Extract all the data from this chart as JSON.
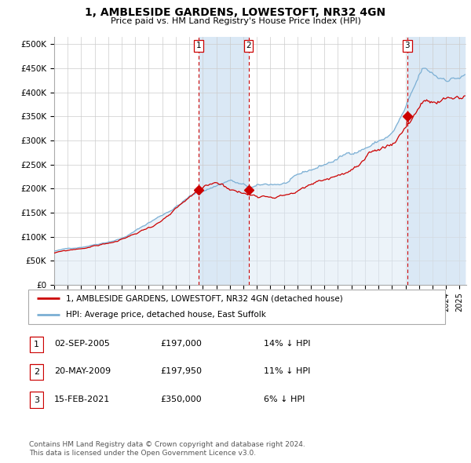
{
  "title": "1, AMBLESIDE GARDENS, LOWESTOFT, NR32 4GN",
  "subtitle": "Price paid vs. HM Land Registry's House Price Index (HPI)",
  "legend_property": "1, AMBLESIDE GARDENS, LOWESTOFT, NR32 4GN (detached house)",
  "legend_hpi": "HPI: Average price, detached house, East Suffolk",
  "property_color": "#cc0000",
  "hpi_color": "#7bafd4",
  "shade_color": "#dae8f5",
  "grid_color": "#cccccc",
  "yticks": [
    0,
    50000,
    100000,
    150000,
    200000,
    250000,
    300000,
    350000,
    400000,
    450000,
    500000
  ],
  "ytick_labels": [
    "£0",
    "£50K",
    "£100K",
    "£150K",
    "£200K",
    "£250K",
    "£300K",
    "£350K",
    "£400K",
    "£450K",
    "£500K"
  ],
  "xmin": 1995.0,
  "xmax": 2025.5,
  "ymin": 0,
  "ymax": 515000,
  "sales": [
    {
      "num": 1,
      "date_str": "02-SEP-2005",
      "date_x": 2005.67,
      "price": 197000
    },
    {
      "num": 2,
      "date_str": "20-MAY-2009",
      "date_x": 2009.38,
      "price": 197950
    },
    {
      "num": 3,
      "date_str": "15-FEB-2021",
      "date_x": 2021.12,
      "price": 350000
    }
  ],
  "table_rows": [
    [
      "1",
      "02-SEP-2005",
      "£197,000",
      "14% ↓ HPI"
    ],
    [
      "2",
      "20-MAY-2009",
      "£197,950",
      "11% ↓ HPI"
    ],
    [
      "3",
      "15-FEB-2021",
      "£350,000",
      "6% ↓ HPI"
    ]
  ],
  "footnote1": "Contains HM Land Registry data © Crown copyright and database right 2024.",
  "footnote2": "This data is licensed under the Open Government Licence v3.0."
}
